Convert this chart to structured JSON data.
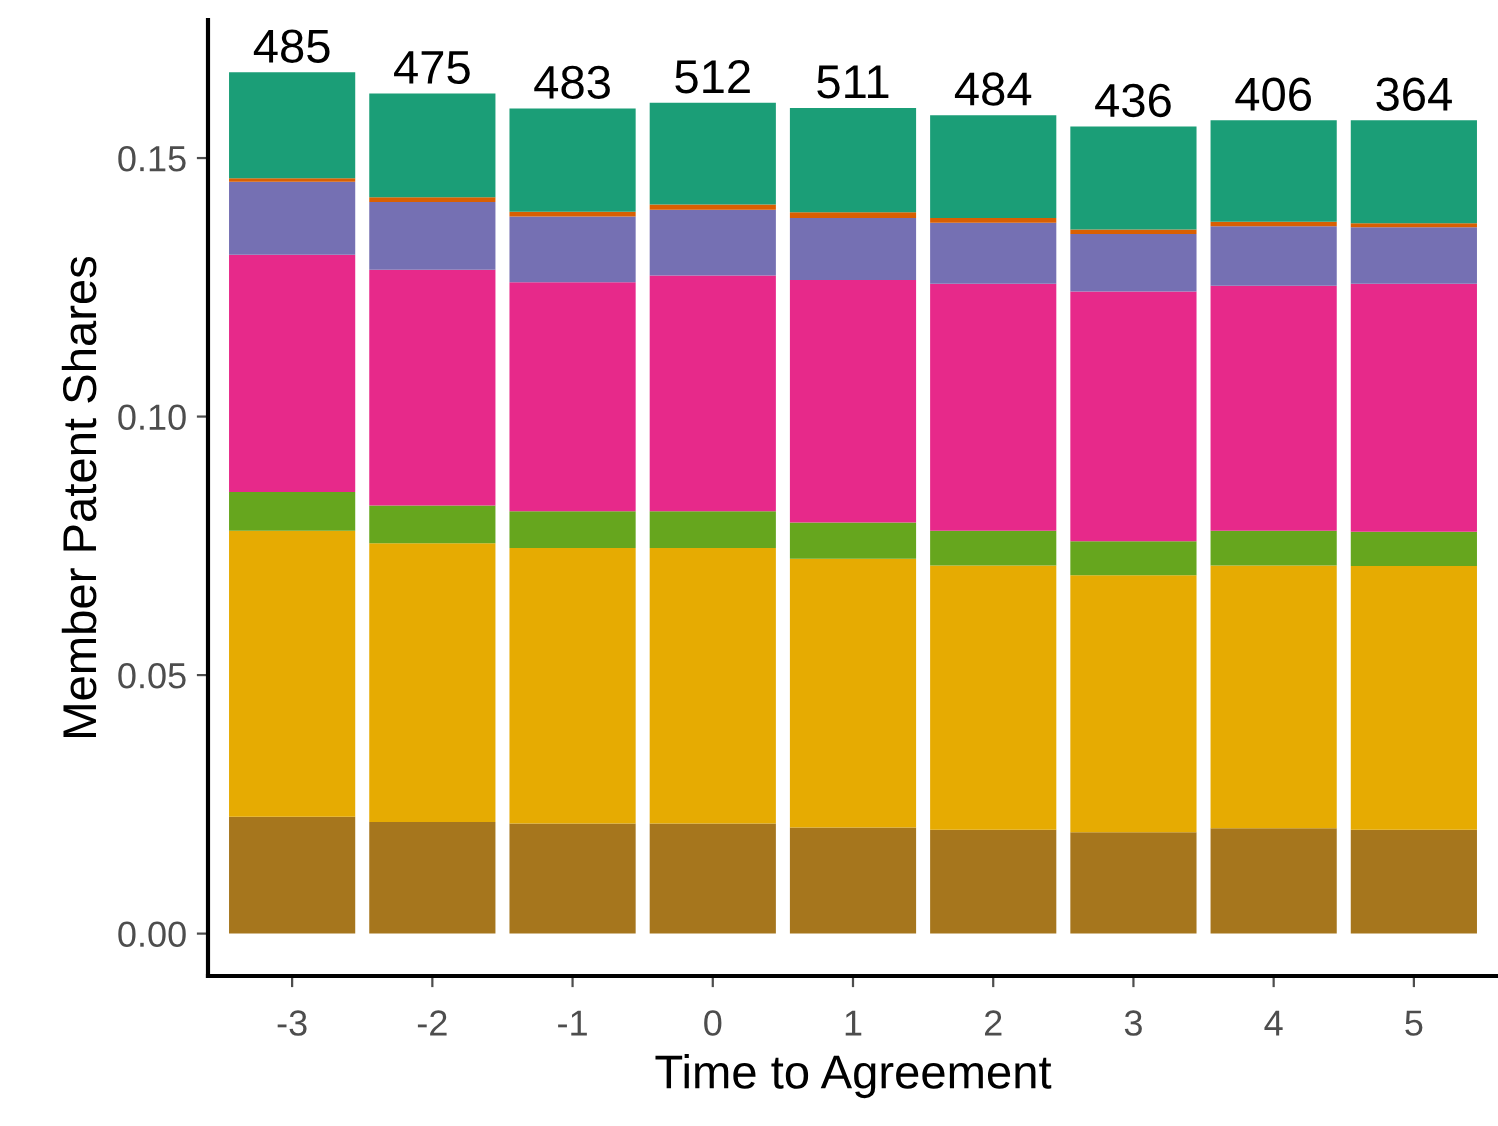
{
  "chart_data": {
    "type": "bar",
    "stacked": true,
    "xlabel": "Time to Agreement",
    "ylabel": "Member Patent Shares",
    "categories": [
      "-3",
      "-2",
      "-1",
      "0",
      "1",
      "2",
      "3",
      "4",
      "5"
    ],
    "series": [
      {
        "color": "#a6761d",
        "values": [
          0.0226,
          0.0216,
          0.0213,
          0.0213,
          0.0205,
          0.0201,
          0.0196,
          0.0204,
          0.0201
        ]
      },
      {
        "color": "#e6ab02",
        "values": [
          0.0553,
          0.0539,
          0.0533,
          0.0533,
          0.052,
          0.0511,
          0.0497,
          0.0508,
          0.051
        ]
      },
      {
        "color": "#66a61e",
        "values": [
          0.0075,
          0.0073,
          0.0071,
          0.0071,
          0.007,
          0.0067,
          0.0066,
          0.0067,
          0.0066
        ]
      },
      {
        "color": "#e7298a",
        "values": [
          0.0459,
          0.0456,
          0.0443,
          0.0456,
          0.0469,
          0.0478,
          0.0483,
          0.0474,
          0.048
        ]
      },
      {
        "color": "#7570b3",
        "values": [
          0.0141,
          0.0131,
          0.0127,
          0.0127,
          0.012,
          0.0118,
          0.0111,
          0.0115,
          0.0109
        ]
      },
      {
        "color": "#d95f02",
        "values": [
          0.0007,
          0.0009,
          0.0009,
          0.001,
          0.0011,
          0.0009,
          0.0009,
          0.0009,
          0.0008
        ]
      },
      {
        "color": "#1b9e77",
        "values": [
          0.0205,
          0.0201,
          0.02,
          0.0197,
          0.0202,
          0.0199,
          0.0199,
          0.0196,
          0.0199
        ]
      }
    ],
    "annotations": [
      {
        "text": "485",
        "x": "-3",
        "y": 0.1666
      },
      {
        "text": "475",
        "x": "-2",
        "y": 0.1625
      },
      {
        "text": "483",
        "x": "-1",
        "y": 0.1596
      },
      {
        "text": "512",
        "x": "0",
        "y": 0.1607
      },
      {
        "text": "511",
        "x": "1",
        "y": 0.1597
      },
      {
        "text": "484",
        "x": "2",
        "y": 0.1583
      },
      {
        "text": "436",
        "x": "3",
        "y": 0.1561
      },
      {
        "text": "406",
        "x": "4",
        "y": 0.1573
      },
      {
        "text": "364",
        "x": "5",
        "y": 0.1573
      }
    ],
    "ylim": [
      -0.0082,
      0.1767
    ],
    "yticks": [
      {
        "value": 0,
        "label": "0.00"
      },
      {
        "value": 0.05,
        "label": "0.05"
      },
      {
        "value": 0.1,
        "label": "0.10"
      },
      {
        "value": 0.15,
        "label": "0.15"
      }
    ],
    "grid": false
  }
}
